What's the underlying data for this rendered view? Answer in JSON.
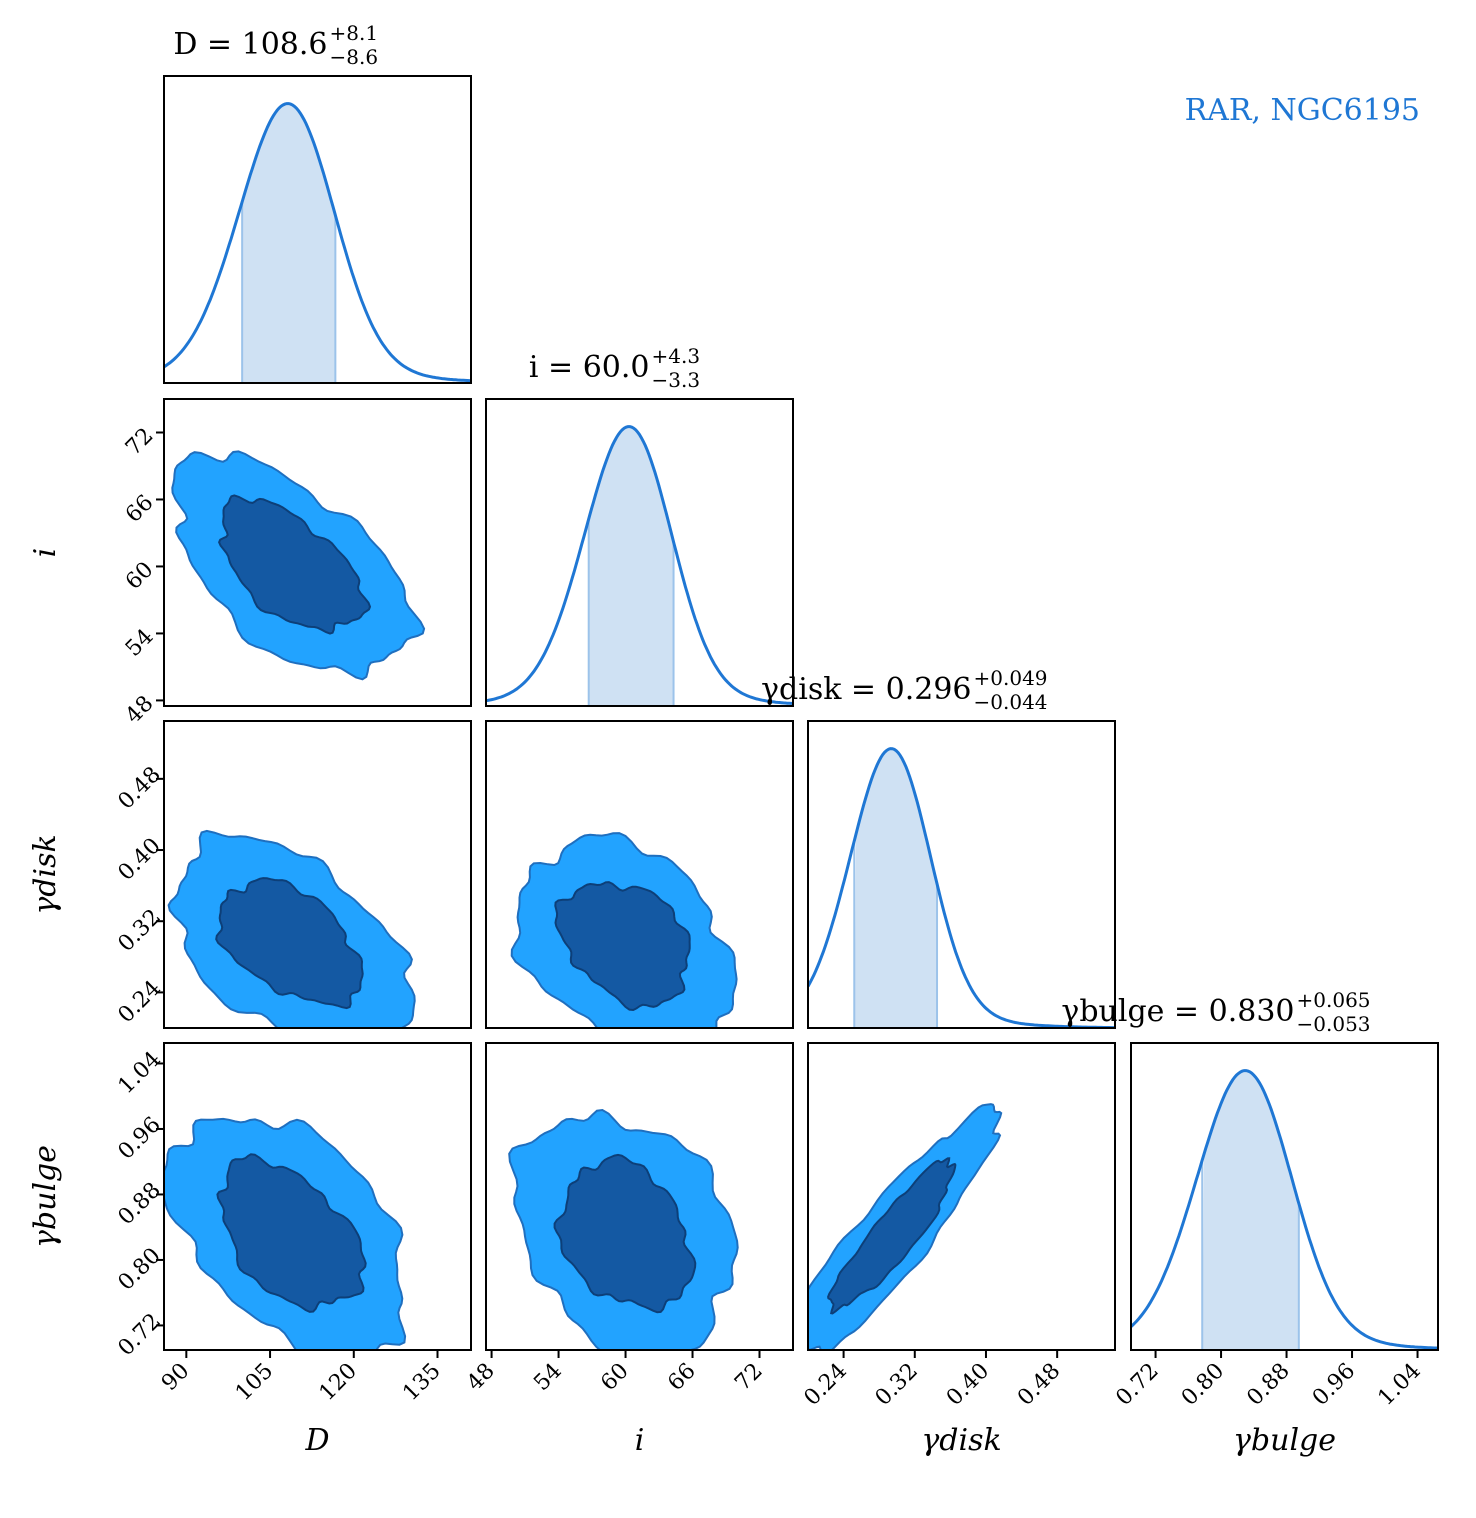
{
  "legend": {
    "label": "RAR, NGC6195",
    "color": "#1f77d4"
  },
  "colors": {
    "line": "#1f77d4",
    "band": "#cfe1f3",
    "band_edge": "#9cc3ea",
    "contour_outer": "#22a3ff",
    "contour_inner": "#1459a3",
    "contour_edge": "#1f6fbf"
  },
  "chart_data": {
    "type": "corner",
    "parameters": [
      {
        "key": "D",
        "label": "D",
        "title": {
          "prefix": "D = ",
          "median": "108.6",
          "plus": "+8.1",
          "minus": "−8.6"
        },
        "median": 108.6,
        "plus": 8.1,
        "minus": 8.6,
        "range": [
          86,
          141
        ],
        "ticks": [
          90,
          105,
          120,
          135
        ],
        "tick_labels": [
          "90",
          "105",
          "120",
          "135"
        ],
        "posterior_peak": 107.5,
        "posterior_sigma": 8.5
      },
      {
        "key": "i",
        "label": "i",
        "title": {
          "prefix": "i = ",
          "median": "60.0",
          "plus": "+4.3",
          "minus": "−3.3"
        },
        "median": 60.0,
        "plus": 4.3,
        "minus": 3.3,
        "range": [
          47.5,
          75
        ],
        "ticks": [
          48,
          54,
          60,
          66,
          72
        ],
        "tick_labels": [
          "48",
          "54",
          "60",
          "66",
          "72"
        ],
        "posterior_peak": 60.0,
        "posterior_sigma": 3.9
      },
      {
        "key": "gamma_disk",
        "label": "γdisk",
        "title": {
          "prefix": "γdisk = ",
          "median": "0.296",
          "plus": "+0.049",
          "minus": "−0.044"
        },
        "median": 0.296,
        "plus": 0.049,
        "minus": 0.044,
        "range": [
          0.2,
          0.545
        ],
        "ticks": [
          0.24,
          0.32,
          0.4,
          0.48
        ],
        "tick_labels": [
          "0.24",
          "0.32",
          "0.40",
          "0.48"
        ],
        "posterior_peak": 0.29,
        "posterior_sigma": 0.045
      },
      {
        "key": "gamma_bulge",
        "label": "γbulge",
        "title": {
          "prefix": "γbulge = ",
          "median": "0.830",
          "plus": "+0.065",
          "minus": "−0.053"
        },
        "median": 0.83,
        "plus": 0.065,
        "minus": 0.053,
        "range": [
          0.69,
          1.065
        ],
        "ticks": [
          0.72,
          0.8,
          0.88,
          0.96,
          1.04
        ],
        "tick_labels": [
          "0.72",
          "0.80",
          "0.88",
          "0.96",
          "1.04"
        ],
        "posterior_peak": 0.825,
        "posterior_sigma": 0.058
      }
    ],
    "pairs": [
      {
        "x": 0,
        "y": 1,
        "center": [
          108.6,
          60.0
        ],
        "sigma": [
          8.5,
          3.9
        ],
        "rho": -0.55
      },
      {
        "x": 0,
        "y": 2,
        "center": [
          108.6,
          0.296
        ],
        "sigma": [
          8.5,
          0.046
        ],
        "rho": -0.45
      },
      {
        "x": 1,
        "y": 2,
        "center": [
          60.0,
          0.296
        ],
        "sigma": [
          3.9,
          0.046
        ],
        "rho": -0.3
      },
      {
        "x": 0,
        "y": 3,
        "center": [
          108.6,
          0.83
        ],
        "sigma": [
          8.5,
          0.06
        ],
        "rho": -0.45
      },
      {
        "x": 1,
        "y": 3,
        "center": [
          60.0,
          0.83
        ],
        "sigma": [
          3.9,
          0.06
        ],
        "rho": -0.25
      },
      {
        "x": 2,
        "y": 3,
        "center": [
          0.296,
          0.83
        ],
        "sigma": [
          0.046,
          0.06
        ],
        "rho": 0.9
      }
    ],
    "contour_levels": [
      "1-sigma (inner, dark)",
      "2-sigma (outer, light)"
    ],
    "grid": false,
    "legend_position": "top-right"
  }
}
